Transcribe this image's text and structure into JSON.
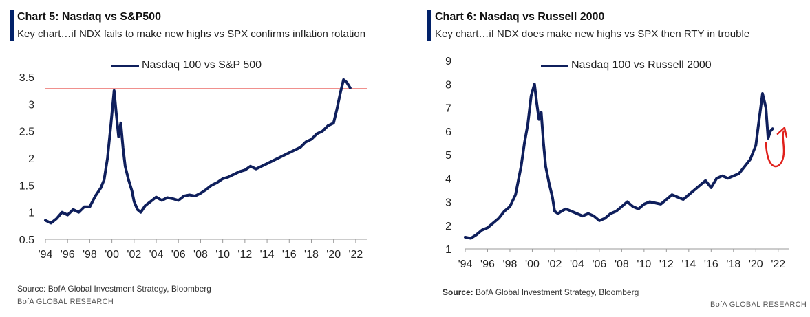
{
  "left": {
    "title": "Chart 5: Nasdaq vs S&P500",
    "subtitle": "Key chart…if NDX fails to make new highs vs SPX confirms inflation rotation",
    "legend": "Nasdaq 100 vs S&P 500",
    "source": "Source:  BofA Global Investment Strategy, Bloomberg",
    "brand": "BofA GLOBAL RESEARCH"
  },
  "right": {
    "title": "Chart 6: Nasdaq vs Russell 2000",
    "subtitle": "Key chart…if NDX does make new highs vs SPX then RTY in trouble",
    "legend": "Nasdaq 100 vs Russell 2000",
    "source_label": "Source:",
    "source_text": "  BofA Global Investment Strategy, Bloomberg",
    "brand": "BofA GLOBAL RESEARCH"
  },
  "colors": {
    "accent": "#012169",
    "series": "#0f1f5c",
    "annotation": "#e0201b"
  },
  "chart_data": [
    {
      "type": "line",
      "title": "Chart 5: Nasdaq vs S&P500",
      "xlabel": "",
      "ylabel": "",
      "xlim": [
        1994,
        2023
      ],
      "ylim": [
        0.5,
        3.5
      ],
      "yticks": [
        0.5,
        1,
        1.5,
        2,
        2.5,
        3,
        3.5
      ],
      "xticks": [
        1994,
        1996,
        1998,
        2000,
        2002,
        2004,
        2006,
        2008,
        2010,
        2012,
        2014,
        2016,
        2018,
        2020,
        2022
      ],
      "xtick_labels": [
        "'94",
        "'96",
        "'98",
        "'00",
        "'02",
        "'04",
        "'06",
        "'08",
        "'10",
        "'12",
        "'14",
        "'16",
        "'18",
        "'20",
        "'22"
      ],
      "ytick_labels": [
        "0.5",
        "1",
        "1.5",
        "2",
        "2.5",
        "3",
        "3.5"
      ],
      "legend_position": "top-center",
      "grid": false,
      "hline": {
        "y": 3.28,
        "color": "#e0201b"
      },
      "series": [
        {
          "name": "Nasdaq 100 vs S&P 500",
          "x": [
            1994.0,
            1994.5,
            1995.0,
            1995.5,
            1996.0,
            1996.5,
            1997.0,
            1997.5,
            1998.0,
            1998.5,
            1999.0,
            1999.3,
            1999.6,
            1999.9,
            2000.2,
            2000.4,
            2000.6,
            2000.8,
            2001.0,
            2001.2,
            2001.5,
            2001.8,
            2002.0,
            2002.3,
            2002.6,
            2003.0,
            2003.5,
            2004.0,
            2004.5,
            2005.0,
            2005.5,
            2006.0,
            2006.5,
            2007.0,
            2007.5,
            2008.0,
            2008.5,
            2009.0,
            2009.5,
            2010.0,
            2010.5,
            2011.0,
            2011.5,
            2012.0,
            2012.5,
            2013.0,
            2013.5,
            2014.0,
            2014.5,
            2015.0,
            2015.5,
            2016.0,
            2016.5,
            2017.0,
            2017.5,
            2018.0,
            2018.5,
            2019.0,
            2019.5,
            2020.0,
            2020.3,
            2020.6,
            2020.9,
            2021.2,
            2021.5
          ],
          "y": [
            0.85,
            0.8,
            0.88,
            1.0,
            0.95,
            1.05,
            1.0,
            1.1,
            1.1,
            1.3,
            1.45,
            1.6,
            2.0,
            2.6,
            3.25,
            2.8,
            2.4,
            2.65,
            2.2,
            1.85,
            1.6,
            1.4,
            1.2,
            1.05,
            1.0,
            1.12,
            1.2,
            1.28,
            1.22,
            1.27,
            1.25,
            1.22,
            1.3,
            1.32,
            1.3,
            1.35,
            1.42,
            1.5,
            1.55,
            1.62,
            1.65,
            1.7,
            1.75,
            1.78,
            1.85,
            1.8,
            1.85,
            1.9,
            1.95,
            2.0,
            2.05,
            2.1,
            2.15,
            2.2,
            2.3,
            2.35,
            2.45,
            2.5,
            2.6,
            2.65,
            2.9,
            3.2,
            3.45,
            3.4,
            3.3
          ]
        }
      ]
    },
    {
      "type": "line",
      "title": "Chart 6: Nasdaq vs Russell 2000",
      "xlabel": "",
      "ylabel": "",
      "xlim": [
        1994,
        2023
      ],
      "ylim": [
        1,
        9
      ],
      "yticks": [
        1,
        2,
        3,
        4,
        5,
        6,
        7,
        8,
        9
      ],
      "xticks": [
        1994,
        1996,
        1998,
        2000,
        2002,
        2004,
        2006,
        2008,
        2010,
        2012,
        2014,
        2016,
        2018,
        2020,
        2022
      ],
      "xtick_labels": [
        "'94",
        "'96",
        "'98",
        "'00",
        "'02",
        "'04",
        "'06",
        "'08",
        "'10",
        "'12",
        "'14",
        "'16",
        "'18",
        "'20",
        "'22"
      ],
      "ytick_labels": [
        "1",
        "2",
        "3",
        "4",
        "5",
        "6",
        "7",
        "8",
        "9"
      ],
      "legend_position": "top-center",
      "grid": false,
      "annotation": {
        "type": "red-curved-arrow",
        "color": "#e0201b"
      },
      "series": [
        {
          "name": "Nasdaq 100 vs Russell 2000",
          "x": [
            1994.0,
            1994.5,
            1995.0,
            1995.5,
            1996.0,
            1996.5,
            1997.0,
            1997.5,
            1998.0,
            1998.5,
            1999.0,
            1999.3,
            1999.6,
            1999.9,
            2000.2,
            2000.4,
            2000.6,
            2000.8,
            2001.0,
            2001.2,
            2001.5,
            2001.8,
            2002.0,
            2002.3,
            2002.6,
            2003.0,
            2003.5,
            2004.0,
            2004.5,
            2005.0,
            2005.5,
            2006.0,
            2006.5,
            2007.0,
            2007.5,
            2008.0,
            2008.5,
            2009.0,
            2009.5,
            2010.0,
            2010.5,
            2011.0,
            2011.5,
            2012.0,
            2012.5,
            2013.0,
            2013.5,
            2014.0,
            2014.5,
            2015.0,
            2015.5,
            2016.0,
            2016.5,
            2017.0,
            2017.5,
            2018.0,
            2018.5,
            2019.0,
            2019.5,
            2020.0,
            2020.3,
            2020.6,
            2020.9,
            2021.1,
            2021.3,
            2021.5
          ],
          "y": [
            1.5,
            1.45,
            1.6,
            1.8,
            1.9,
            2.1,
            2.3,
            2.6,
            2.8,
            3.3,
            4.5,
            5.5,
            6.3,
            7.5,
            8.0,
            7.2,
            6.5,
            6.8,
            5.5,
            4.5,
            3.8,
            3.2,
            2.6,
            2.5,
            2.6,
            2.7,
            2.6,
            2.5,
            2.4,
            2.5,
            2.4,
            2.2,
            2.3,
            2.5,
            2.6,
            2.8,
            3.0,
            2.8,
            2.7,
            2.9,
            3.0,
            2.95,
            2.9,
            3.1,
            3.3,
            3.2,
            3.1,
            3.3,
            3.5,
            3.7,
            3.9,
            3.6,
            4.0,
            4.1,
            4.0,
            4.1,
            4.2,
            4.5,
            4.8,
            5.4,
            6.5,
            7.6,
            7.0,
            5.7,
            6.0,
            6.1
          ]
        }
      ]
    }
  ]
}
